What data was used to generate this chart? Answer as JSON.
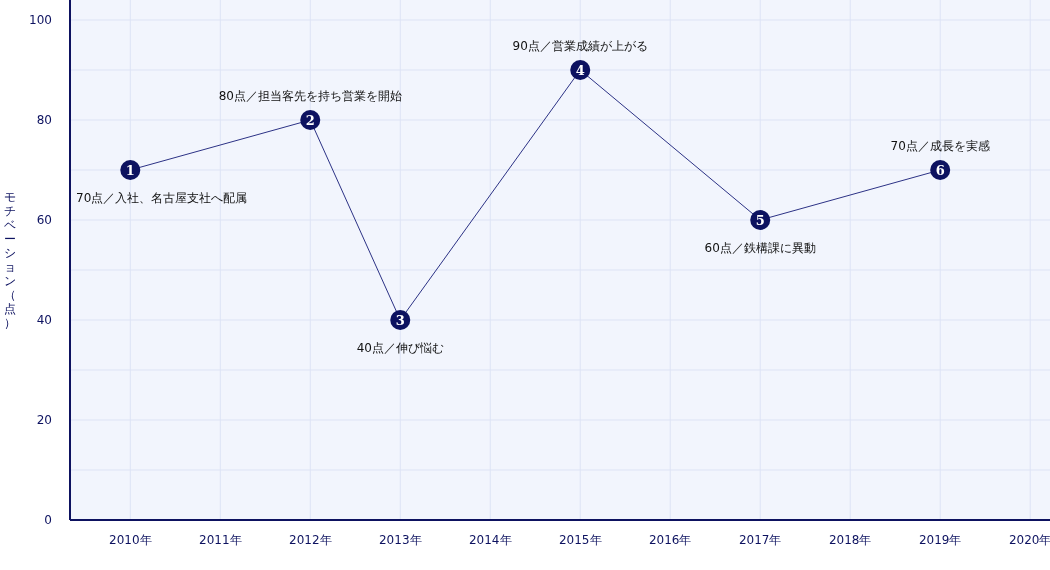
{
  "chart_data": {
    "type": "line",
    "ylabel": "モチベーション（点）",
    "x": [
      2010,
      2012,
      2013,
      2015,
      2017,
      2019
    ],
    "series": [
      {
        "color": "#2c3285",
        "values": [
          70,
          80,
          40,
          90,
          60,
          70
        ]
      }
    ],
    "xlim": [
      2009.33,
      2020.22
    ],
    "xticks": [
      {
        "value": 2010,
        "label": "2010年"
      },
      {
        "value": 2011,
        "label": "2011年"
      },
      {
        "value": 2012,
        "label": "2012年"
      },
      {
        "value": 2013,
        "label": "2013年"
      },
      {
        "value": 2014,
        "label": "2014年"
      },
      {
        "value": 2015,
        "label": "2015年"
      },
      {
        "value": 2016,
        "label": "2016年"
      },
      {
        "value": 2017,
        "label": "2017年"
      },
      {
        "value": 2018,
        "label": "2018年"
      },
      {
        "value": 2019,
        "label": "2019年"
      },
      {
        "value": 2020,
        "label": "2020年"
      }
    ],
    "ylim": [
      0,
      104
    ],
    "yticks": [
      0,
      {
        "value": 10,
        "label": null
      },
      20,
      {
        "value": 30,
        "label": null
      },
      40,
      {
        "value": 50,
        "label": null
      },
      60,
      {
        "value": 70,
        "label": null
      },
      80,
      {
        "value": 90,
        "label": null
      },
      100
    ],
    "annotations": [
      {
        "text": "1",
        "x": 2010,
        "y": 70
      },
      {
        "text": "2",
        "x": 2012,
        "y": 80
      },
      {
        "text": "3",
        "x": 2013,
        "y": 40
      },
      {
        "text": "4",
        "x": 2015,
        "y": 90
      },
      {
        "text": "5",
        "x": 2017,
        "y": 60
      },
      {
        "text": "6",
        "x": 2019,
        "y": 70
      },
      {
        "text": "70点／入社、名古屋支社へ配属",
        "x": 2010,
        "y": 70
      },
      {
        "text": "80点／担当客先を持ち営業を開始",
        "x": 2012,
        "y": 80
      },
      {
        "text": "40点／伸び悩む",
        "x": 2013,
        "y": 40
      },
      {
        "text": "90点／営業成績が上がる",
        "x": 2015,
        "y": 90
      },
      {
        "text": "60点／鉄構課に異動",
        "x": 2017,
        "y": 60
      },
      {
        "text": "70点／成長を実感",
        "x": 2019,
        "y": 70
      }
    ],
    "grid": true,
    "marker": "circle",
    "line_style": "solid"
  }
}
